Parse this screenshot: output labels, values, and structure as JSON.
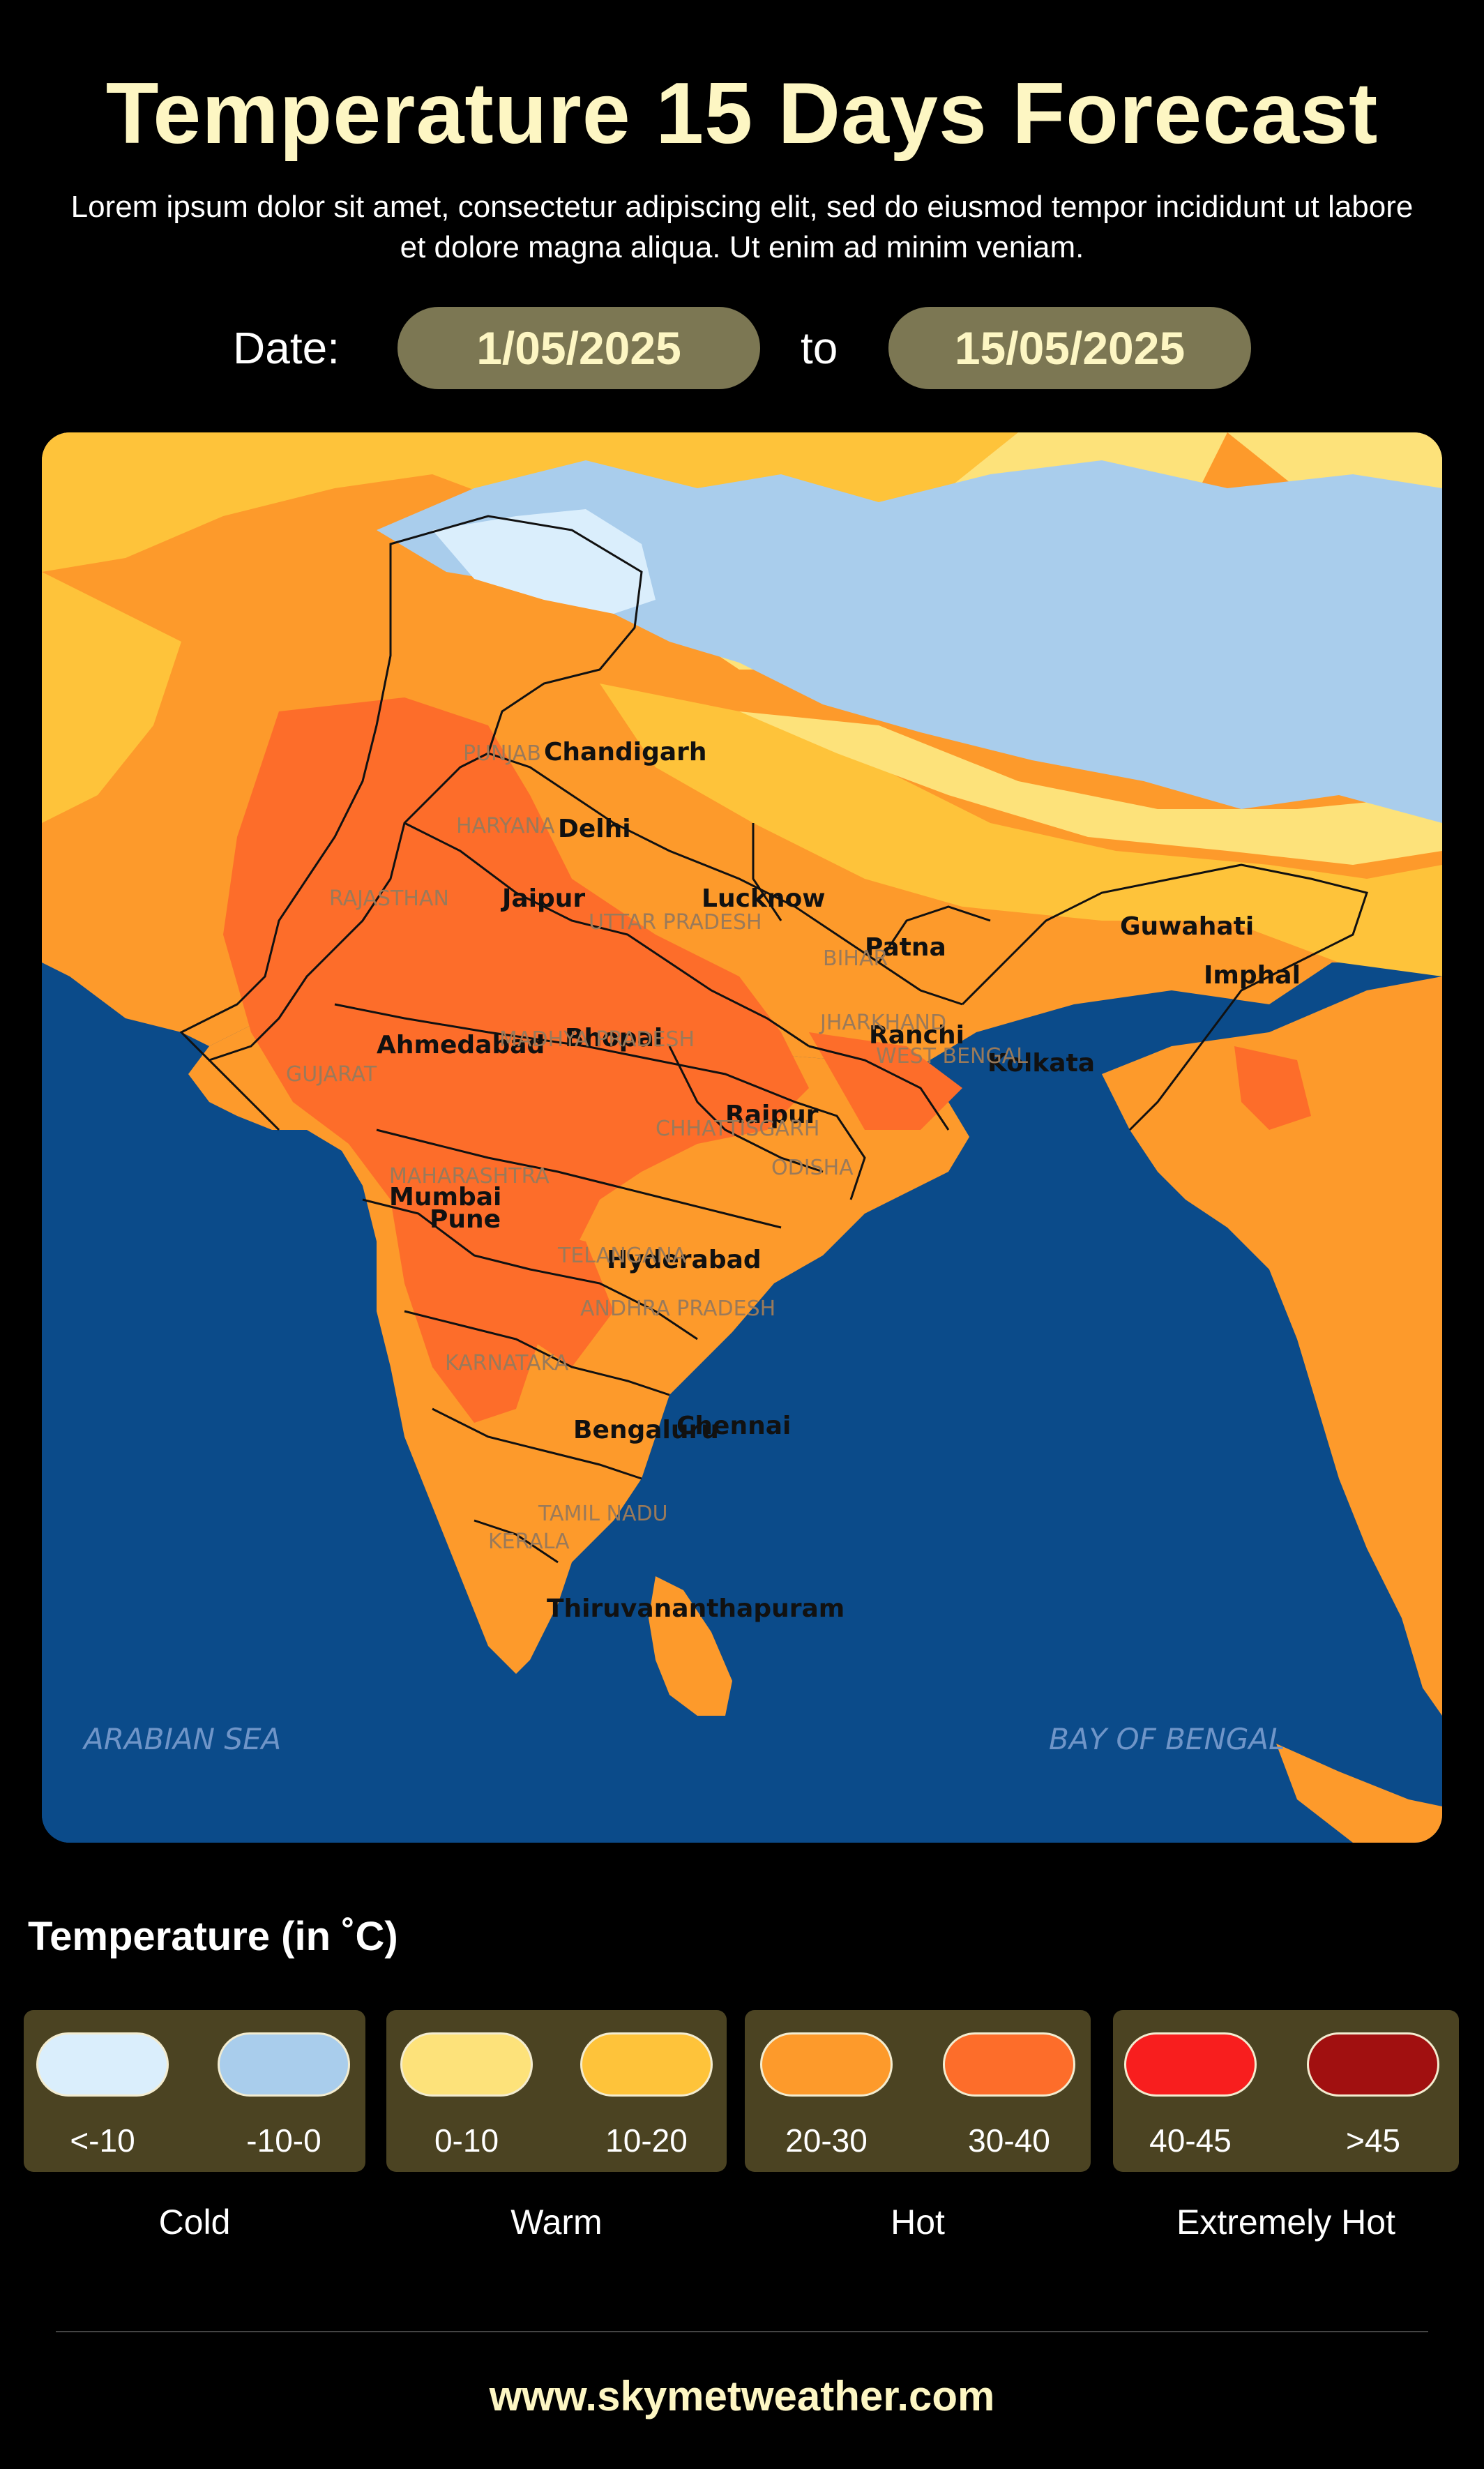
{
  "header": {
    "title": "Temperature 15 Days Forecast",
    "subtitle": "Lorem ipsum dolor sit amet, consectetur adipiscing elit, sed do eiusmod tempor incididunt ut labore et dolore magna aliqua. Ut enim ad minim veniam."
  },
  "date_range": {
    "label": "Date:",
    "start": "1/05/2025",
    "separator": "to",
    "end": "15/05/2025"
  },
  "map": {
    "cities": [
      "Chandigarh",
      "Delhi",
      "Jaipur",
      "Lucknow",
      "Patna",
      "Guwahati",
      "Imphal",
      "Ahmedabad",
      "Bhopal",
      "Ranchi",
      "Kolkata",
      "Raipur",
      "Mumbai",
      "Pune",
      "Hyderabad",
      "Bengaluru",
      "Chennai",
      "Thiruvananthapuram"
    ],
    "states": [
      "PUNJAB",
      "HARYANA",
      "RAJASTHAN",
      "UTTAR PRADESH",
      "BIHAR",
      "JHARKHAND",
      "WEST BENGAL",
      "GUJARAT",
      "MADHYA PRADESH",
      "CHHATTISGARH",
      "ODISHA",
      "MAHARASHTRA",
      "TELANGANA",
      "ANDHRA PRADESH",
      "KARNATAKA",
      "TAMIL NADU",
      "KERALA"
    ],
    "seas": [
      "ARABIAN SEA",
      "BAY OF BENGAL"
    ]
  },
  "legend": {
    "title": "Temperature (in ˚C)",
    "groups": [
      {
        "name": "Cold",
        "items": [
          {
            "label": "<-10",
            "color": "#daeefc"
          },
          {
            "label": "-10-0",
            "color": "#a9cdec"
          }
        ]
      },
      {
        "name": "Warm",
        "items": [
          {
            "label": "0-10",
            "color": "#fde27a"
          },
          {
            "label": "10-20",
            "color": "#fec33a"
          }
        ]
      },
      {
        "name": "Hot",
        "items": [
          {
            "label": "20-30",
            "color": "#fd9a2b"
          },
          {
            "label": "30-40",
            "color": "#fd6d2a"
          }
        ]
      },
      {
        "name": "Extremely Hot",
        "items": [
          {
            "label": "40-45",
            "color": "#f81e1e"
          },
          {
            "label": ">45",
            "color": "#a11010"
          }
        ]
      }
    ]
  },
  "footer": {
    "website": "www.skymetweather.com"
  }
}
